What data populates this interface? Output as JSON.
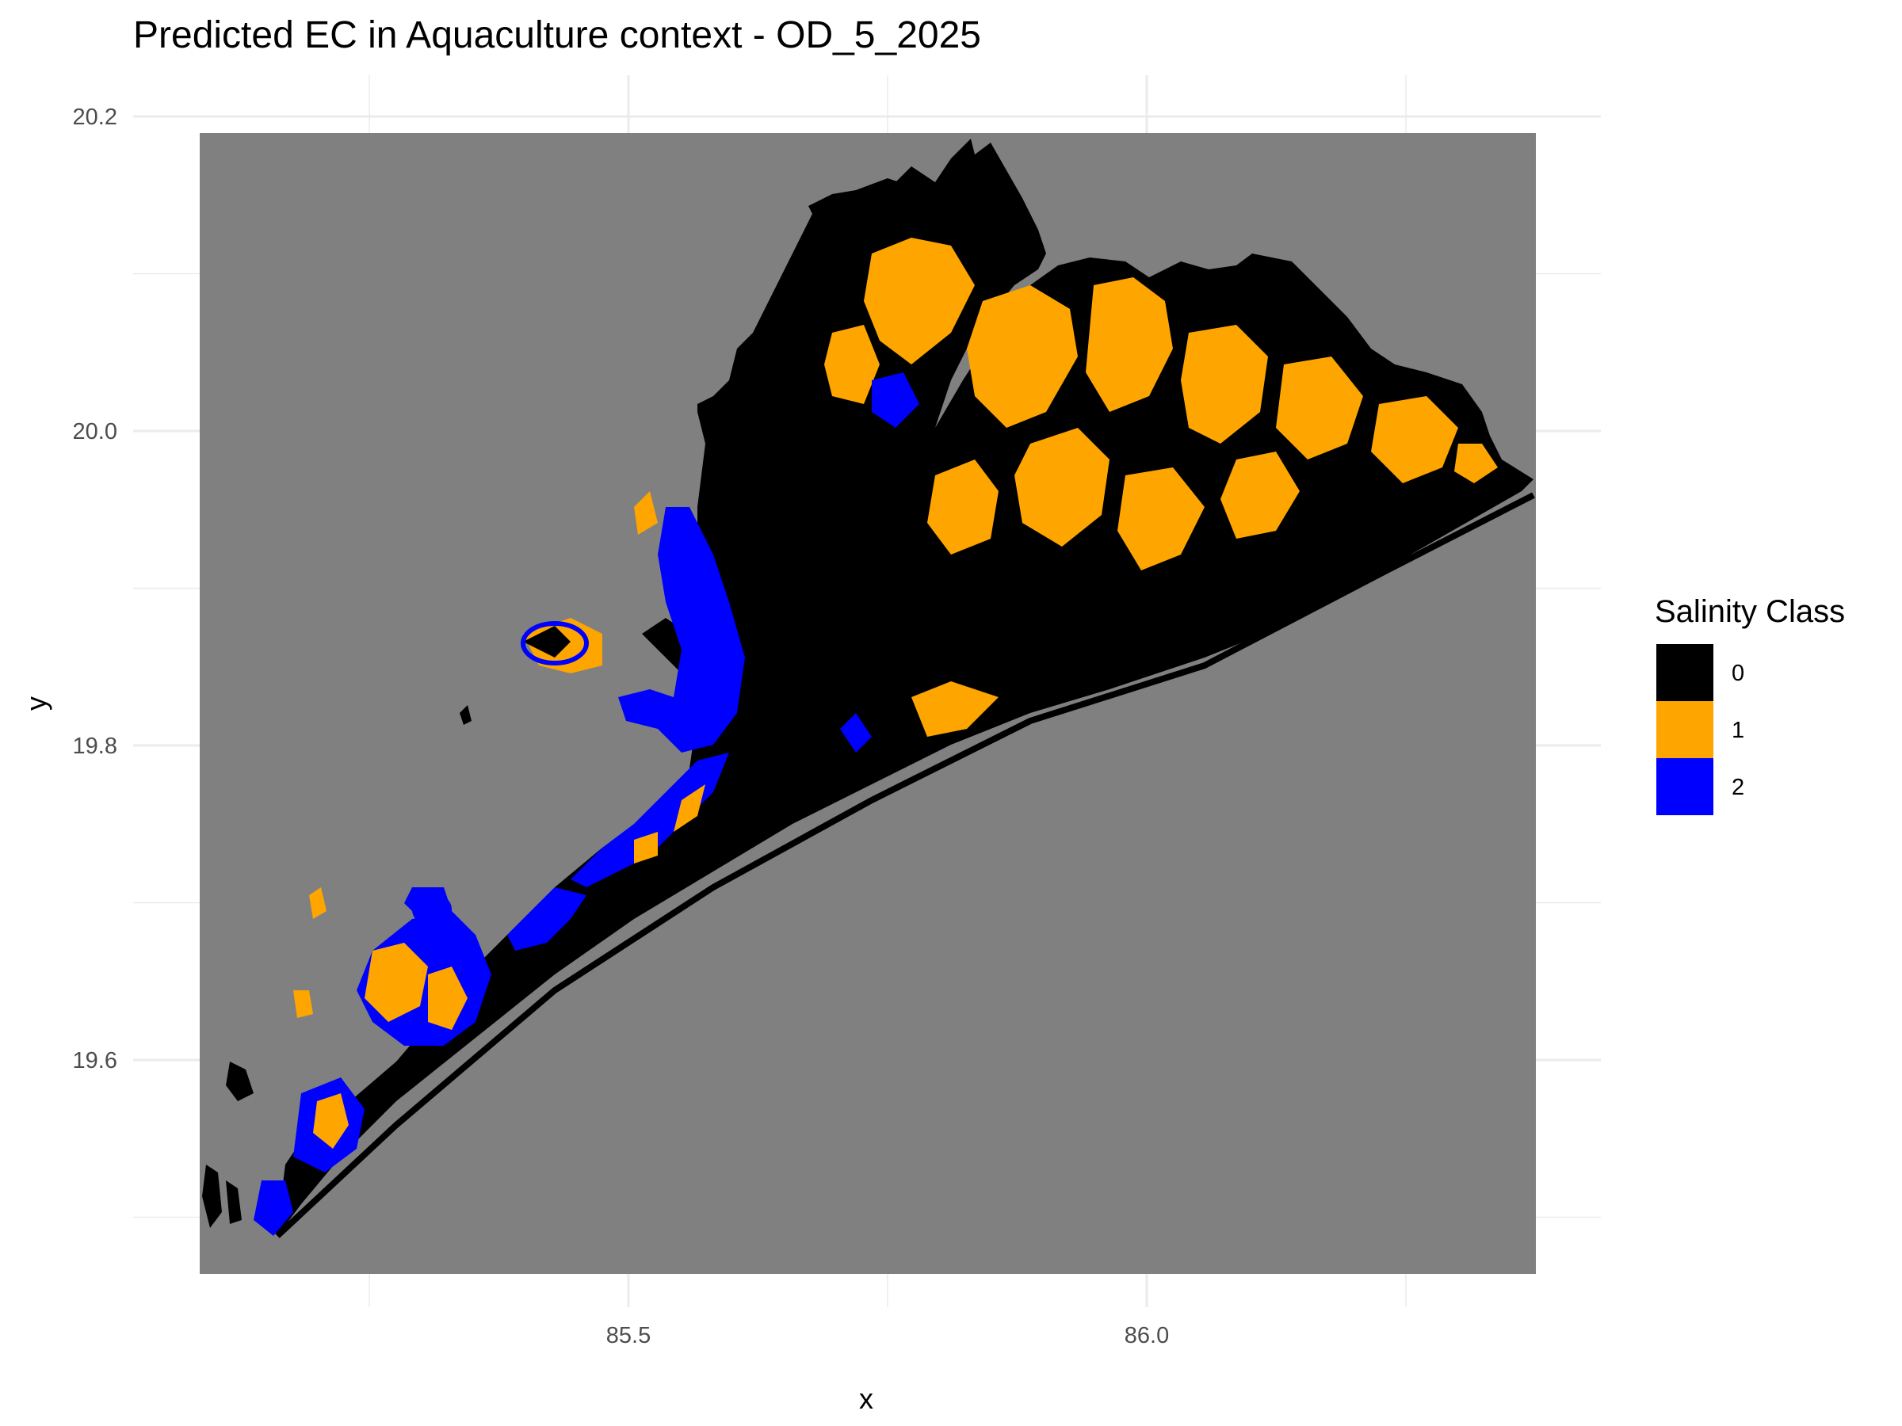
{
  "chart_data": {
    "type": "heatmap",
    "title": "Predicted EC in Aquaculture context - OD_5_2025",
    "xlabel": "x",
    "ylabel": "y",
    "x_ticks": [
      "85.5",
      "86.0"
    ],
    "y_ticks": [
      "19.6",
      "19.8",
      "20.0",
      "20.2"
    ],
    "xlim": [
      84.97,
      86.37
    ],
    "ylim": [
      19.46,
      20.21
    ],
    "grid": true,
    "background_value_color": "#808080",
    "legend": {
      "title": "Salinity Class",
      "placement": "right",
      "entries": [
        {
          "label": "0",
          "color": "#000000"
        },
        {
          "label": "1",
          "color": "#FFA500"
        },
        {
          "label": "2",
          "color": "#0000FF"
        }
      ]
    }
  }
}
